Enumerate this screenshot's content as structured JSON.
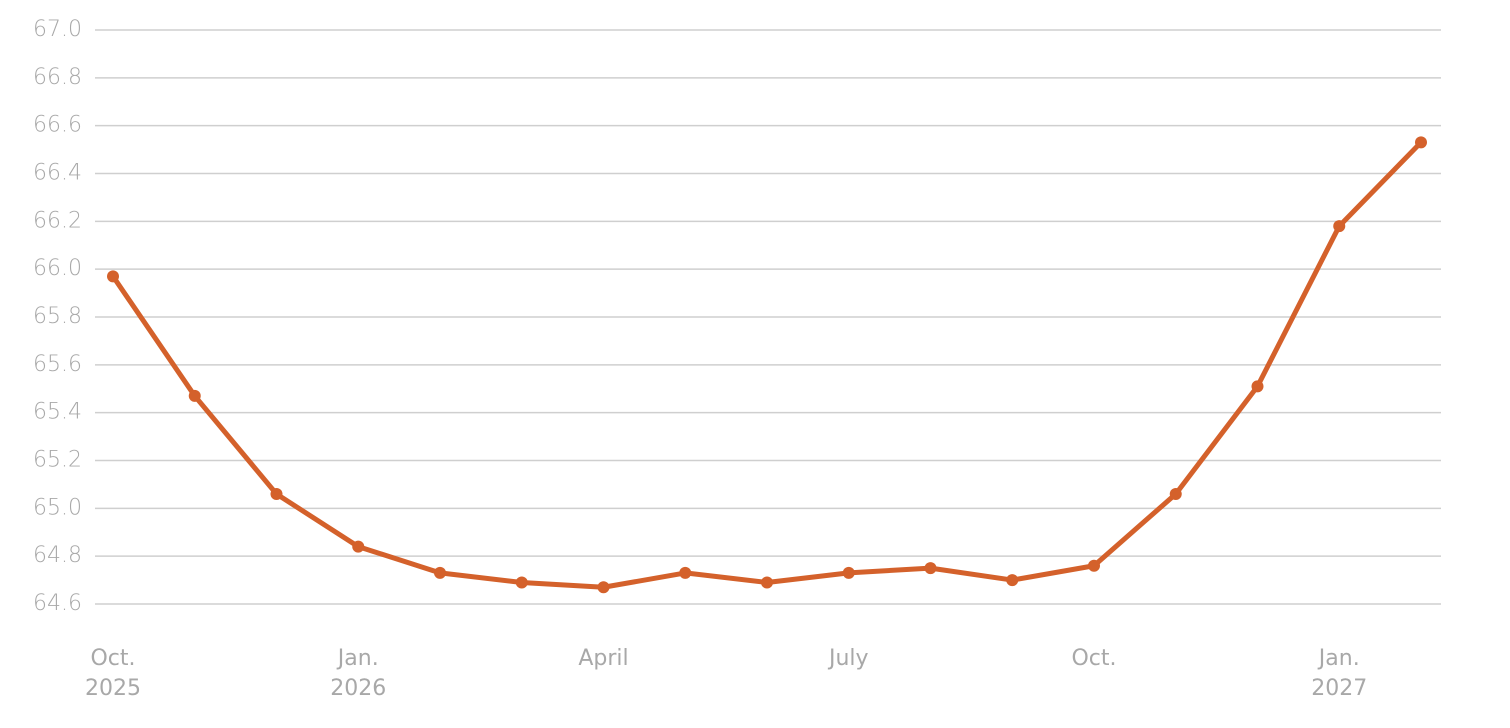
{
  "chart_data": {
    "type": "line",
    "categories": [
      "Oct.\n2025",
      null,
      null,
      "Jan.\n2026",
      null,
      null,
      "April",
      null,
      null,
      "July",
      null,
      null,
      "Oct.",
      null,
      null,
      "Jan.\n2027",
      null
    ],
    "series": [
      {
        "color": "#d4612b",
        "values": [
          65.97,
          65.47,
          65.06,
          64.84,
          64.73,
          64.69,
          64.67,
          64.73,
          64.69,
          64.73,
          64.75,
          64.7,
          64.76,
          65.06,
          65.51,
          66.18,
          66.53
        ]
      }
    ],
    "ylim": [
      64.6,
      67.0
    ],
    "yticks": [
      {
        "value": 64.6,
        "label": "64.6"
      },
      {
        "value": 64.8,
        "label": "64.8"
      },
      {
        "value": 65.0,
        "label": "65.0"
      },
      {
        "value": 65.2,
        "label": "65.2"
      },
      {
        "value": 65.4,
        "label": "65.4"
      },
      {
        "value": 65.6,
        "label": "65.6"
      },
      {
        "value": 65.8,
        "label": "65.8"
      },
      {
        "value": 66.0,
        "label": "66.0"
      },
      {
        "value": 66.2,
        "label": "66.2"
      },
      {
        "value": 66.4,
        "label": "66.4"
      },
      {
        "value": 66.6,
        "label": "66.6"
      },
      {
        "value": 66.8,
        "label": "66.8"
      },
      {
        "value": 67.0,
        "label": "67.0"
      }
    ],
    "grid": true
  }
}
